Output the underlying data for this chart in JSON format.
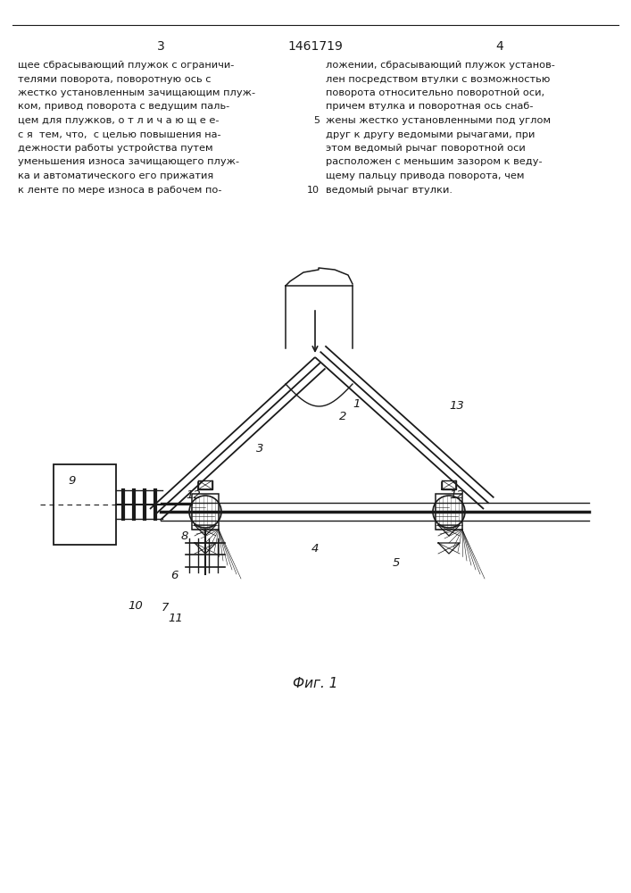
{
  "bg_color": "#ffffff",
  "line_color": "#1a1a1a",
  "text_color": "#1a1a1a",
  "page_number_left": "3",
  "page_number_center": "1461719",
  "page_number_right": "4",
  "left_text": "щее сбрасывающий плужок с ограничи-\nтелями поворота, поворотную ось с\nжестко установленным зачищающим плуж-\nком, привод поворота с ведущим паль-\nцем для плужков, о т л и ч а ю щ е е-\nс я  тем, что,  с целью повышения на-\nдежности работы устройства путем\nуменьшения износа зачищающего плуж-\nка и автоматического его прижатия\nк ленте по мере износа в рабочем по-",
  "right_text": "ложении, сбрасывающий плужок установ-\nлен посредством втулки с возможностью\nповорота относительно поворотной оси,\nпричем втулка и поворотная ось снаб-\nжены жестко установленными под углом\nдруг к другу ведомыми рычагами, при\nэтом ведомый рычаг поворотной оси\nрасположен с меньшим зазором к веду-\nщему пальцу привода поворота, чем\nведомый рычаг втулки.",
  "line_num_5": "5",
  "line_num_10": "10",
  "caption": "Фиг. 1"
}
